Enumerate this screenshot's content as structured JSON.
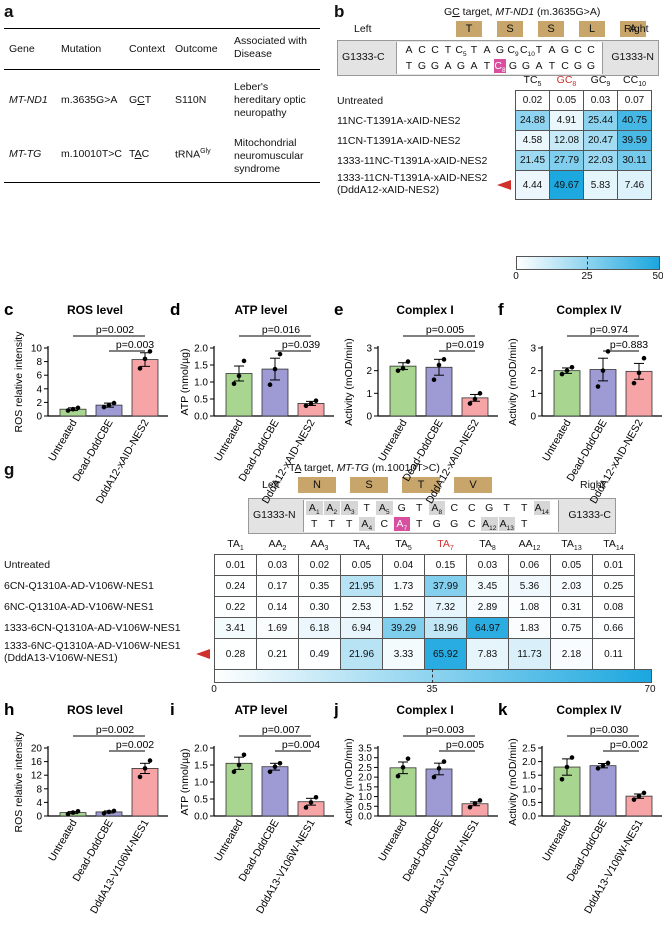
{
  "panel_letters": {
    "a": "a",
    "b": "b",
    "c": "c",
    "d": "d",
    "e": "e",
    "f": "f",
    "g": "g",
    "h": "h",
    "i": "i",
    "j": "j",
    "k": "k"
  },
  "table_a": {
    "headers": [
      "Gene",
      "Mutation",
      "Context",
      "Outcome",
      "Associated with Disease"
    ],
    "rows": [
      {
        "gene": "MT-ND1",
        "mutation": "m.3635G>A",
        "context": "GCT",
        "context_underline_index": 1,
        "outcome": "S110N",
        "disease": [
          "Leber's",
          "hereditary optic",
          "neuropathy"
        ]
      },
      {
        "gene": "MT-TG",
        "mutation": "m.10010T>C",
        "context": "TAC",
        "context_underline_index": 1,
        "outcome": "tRNA",
        "outcome_sup": "Gly",
        "disease": [
          "Mitochondrial",
          "neuromuscular",
          "syndrome"
        ]
      }
    ]
  },
  "panel_b": {
    "title_pre": "G",
    "title_ul": "C",
    "title_post": " target, ",
    "title_gene": "MT-ND1",
    "title_mut": " (m.3635G>A)",
    "left": "Left",
    "right": "Right",
    "left_box": "G1333-C",
    "right_box": "G1333-N",
    "aa": [
      "T",
      "S",
      "S",
      "L",
      "A"
    ],
    "top_seq": [
      {
        "b": "A",
        "s": ""
      },
      {
        "b": "C",
        "s": ""
      },
      {
        "b": "C",
        "s": ""
      },
      {
        "b": "T",
        "s": ""
      },
      {
        "b": "C",
        "s": "5"
      },
      {
        "b": "T",
        "s": ""
      },
      {
        "b": "A",
        "s": ""
      },
      {
        "b": "G",
        "s": ""
      },
      {
        "b": "C",
        "s": "9"
      },
      {
        "b": "C",
        "s": "10"
      },
      {
        "b": "T",
        "s": ""
      },
      {
        "b": "A",
        "s": ""
      },
      {
        "b": "G",
        "s": ""
      },
      {
        "b": "C",
        "s": ""
      },
      {
        "b": "C",
        "s": ""
      }
    ],
    "bottom_seq": [
      {
        "b": "T",
        "s": ""
      },
      {
        "b": "G",
        "s": ""
      },
      {
        "b": "G",
        "s": ""
      },
      {
        "b": "A",
        "s": ""
      },
      {
        "b": "G",
        "s": ""
      },
      {
        "b": "A",
        "s": ""
      },
      {
        "b": "T",
        "s": ""
      },
      {
        "b": "C",
        "s": "8",
        "hl": true
      },
      {
        "b": "G",
        "s": ""
      },
      {
        "b": "G",
        "s": ""
      },
      {
        "b": "A",
        "s": ""
      },
      {
        "b": "T",
        "s": ""
      },
      {
        "b": "C",
        "s": ""
      },
      {
        "b": "G",
        "s": ""
      },
      {
        "b": "G",
        "s": ""
      }
    ],
    "col_headers": [
      {
        "t": "TC",
        "s": "5"
      },
      {
        "t": "GC",
        "s": "8",
        "red": true
      },
      {
        "t": "GC",
        "s": "9"
      },
      {
        "t": "CC",
        "s": "10"
      }
    ],
    "rows": [
      {
        "label": "Untreated",
        "values": [
          0.02,
          0.05,
          0.03,
          0.07
        ]
      },
      {
        "label": "11NC-T1391A-xAID-NES2",
        "values": [
          24.88,
          4.91,
          25.44,
          40.75
        ]
      },
      {
        "label": "11CN-T1391A-xAID-NES2",
        "values": [
          4.58,
          12.08,
          20.47,
          39.59
        ]
      },
      {
        "label": "1333-11NC-T1391A-xAID-NES2",
        "values": [
          21.45,
          27.79,
          22.03,
          30.11
        ]
      },
      {
        "label": "1333-11CN-T1391A-xAID-NES2",
        "label2": "(DddA12-xAID-NES2)",
        "values": [
          4.44,
          49.67,
          5.83,
          7.46
        ],
        "arrow": true
      }
    ],
    "scale": [
      "0",
      "25",
      "50"
    ]
  },
  "panel_g": {
    "title_pre": "T",
    "title_ul": "A",
    "title_post": " target, ",
    "title_gene": "MT-TG",
    "title_mut": " (m.10010T>C)",
    "left": "Left",
    "right": "Right",
    "left_box": "G1333-N",
    "right_box": "G1333-C",
    "aa": [
      "N",
      "S",
      "T",
      "V"
    ],
    "top_seq": [
      {
        "b": "A",
        "s": "1",
        "g": true
      },
      {
        "b": "A",
        "s": "2",
        "g": true
      },
      {
        "b": "A",
        "s": "3",
        "g": true
      },
      {
        "b": "T",
        "s": ""
      },
      {
        "b": "A",
        "s": "5",
        "g": true
      },
      {
        "b": "G",
        "s": ""
      },
      {
        "b": "T",
        "s": ""
      },
      {
        "b": "A",
        "s": "8",
        "g": true
      },
      {
        "b": "C",
        "s": ""
      },
      {
        "b": "C",
        "s": ""
      },
      {
        "b": "G",
        "s": ""
      },
      {
        "b": "T",
        "s": ""
      },
      {
        "b": "T",
        "s": ""
      },
      {
        "b": "A",
        "s": "14",
        "g": true
      }
    ],
    "bottom_seq": [
      {
        "b": "T",
        "s": ""
      },
      {
        "b": "T",
        "s": ""
      },
      {
        "b": "T",
        "s": ""
      },
      {
        "b": "A",
        "s": "4",
        "g": true
      },
      {
        "b": "C",
        "s": ""
      },
      {
        "b": "A",
        "s": "7",
        "hl": true
      },
      {
        "b": "T",
        "s": ""
      },
      {
        "b": "G",
        "s": ""
      },
      {
        "b": "G",
        "s": ""
      },
      {
        "b": "C",
        "s": ""
      },
      {
        "b": "A",
        "s": "12",
        "g": true
      },
      {
        "b": "A",
        "s": "13",
        "g": true
      },
      {
        "b": "T",
        "s": ""
      }
    ],
    "col_headers": [
      {
        "t": "TA",
        "s": "1"
      },
      {
        "t": "AA",
        "s": "2"
      },
      {
        "t": "AA",
        "s": "3"
      },
      {
        "t": "TA",
        "s": "4"
      },
      {
        "t": "TA",
        "s": "5"
      },
      {
        "t": "TA",
        "s": "7",
        "red": true
      },
      {
        "t": "TA",
        "s": "8"
      },
      {
        "t": "AA",
        "s": "12"
      },
      {
        "t": "TA",
        "s": "13"
      },
      {
        "t": "TA",
        "s": "14"
      }
    ],
    "rows": [
      {
        "label": "Untreated",
        "values": [
          0.01,
          0.03,
          0.02,
          0.05,
          0.04,
          0.15,
          0.03,
          0.06,
          0.05,
          0.01
        ]
      },
      {
        "label": "6CN-Q1310A-AD-V106W-NES1",
        "values": [
          0.24,
          0.17,
          0.35,
          21.95,
          1.73,
          37.99,
          3.45,
          5.36,
          2.03,
          0.25
        ]
      },
      {
        "label": "6NC-Q1310A-AD-V106W-NES1",
        "values": [
          0.22,
          0.14,
          0.3,
          2.53,
          1.52,
          7.32,
          2.89,
          1.08,
          0.31,
          0.08
        ]
      },
      {
        "label": "1333-6CN-Q1310A-AD-V106W-NES1",
        "values": [
          3.41,
          1.69,
          6.18,
          6.94,
          39.29,
          18.96,
          64.97,
          1.83,
          0.75,
          0.66
        ]
      },
      {
        "label": "1333-6NC-Q1310A-AD-V106W-NES1",
        "label2": "(DddA13-V106W-NES1)",
        "values": [
          0.28,
          0.21,
          0.49,
          21.96,
          3.33,
          65.92,
          7.83,
          11.73,
          2.18,
          0.11
        ],
        "arrow": true
      }
    ],
    "scale": [
      "0",
      "35",
      "70"
    ]
  },
  "colors": {
    "untreated": "#a8d58f",
    "dead": "#9d9ad4",
    "active": "#f6a4a6",
    "heat_max": "#1ba7df",
    "aa_box": "#c8a56a",
    "hl": "#d94f9f",
    "red": "#d0312d"
  },
  "chart_data": [
    {
      "id": "c",
      "type": "bar",
      "title": "ROS level",
      "ylabel": "ROS relative intensity",
      "ylim": [
        0,
        10
      ],
      "yticks": [
        0,
        2,
        4,
        6,
        8,
        10
      ],
      "categories": [
        "Untreated",
        "Dead-DddCBE",
        "DddA12-xAID-NES2"
      ],
      "values": [
        1.0,
        1.6,
        8.3
      ],
      "errors": [
        0.2,
        0.3,
        1.0
      ],
      "points": [
        [
          0.8,
          1.0,
          1.2
        ],
        [
          1.3,
          1.6,
          1.9
        ],
        [
          7.0,
          8.4,
          9.5
        ]
      ],
      "pvalues": [
        "p=0.002",
        "p=0.003"
      ]
    },
    {
      "id": "d",
      "type": "bar",
      "title": "ATP level",
      "ylabel": "ATP (nmol/µg)",
      "ylim": [
        0,
        2.0
      ],
      "yticks": [
        "0.0",
        "0.5",
        "1.0",
        "1.5",
        "2.0"
      ],
      "categories": [
        "Untreated",
        "Dead-DddCBE",
        "DddA12-xAID-NES2"
      ],
      "values": [
        1.25,
        1.38,
        0.37
      ],
      "errors": [
        0.22,
        0.32,
        0.06
      ],
      "points": [
        [
          0.95,
          1.18,
          1.62
        ],
        [
          0.92,
          1.38,
          1.82
        ],
        [
          0.3,
          0.36,
          0.45
        ]
      ],
      "pvalues": [
        "p=0.016",
        "p=0.039"
      ]
    },
    {
      "id": "e",
      "type": "bar",
      "title": "Complex I",
      "ylabel": "Activity (mOD/min)",
      "ylim": [
        0,
        3
      ],
      "yticks": [
        0,
        1,
        2,
        3
      ],
      "categories": [
        "Untreated",
        "Dead-DddCBE",
        "DddA12-xAID-NES2"
      ],
      "values": [
        2.2,
        2.15,
        0.8
      ],
      "errors": [
        0.15,
        0.35,
        0.15
      ],
      "points": [
        [
          2.0,
          2.1,
          2.4
        ],
        [
          1.6,
          2.25,
          2.5
        ],
        [
          0.55,
          0.75,
          1.0
        ]
      ],
      "pvalues": [
        "p=0.005",
        "p=0.019"
      ]
    },
    {
      "id": "f",
      "type": "bar",
      "title": "Complex IV",
      "ylabel": "Activity (mOD/min)",
      "ylim": [
        0,
        3
      ],
      "yticks": [
        0,
        1,
        2,
        3
      ],
      "categories": [
        "Untreated",
        "Dead-DddCBE",
        "DddA12-xAID-NES2"
      ],
      "values": [
        2.0,
        2.05,
        1.97
      ],
      "errors": [
        0.12,
        0.5,
        0.35
      ],
      "points": [
        [
          1.85,
          2.0,
          2.15
        ],
        [
          1.3,
          2.0,
          2.85
        ],
        [
          1.45,
          1.9,
          2.55
        ]
      ],
      "pvalues": [
        "p=0.974",
        "p=0.883"
      ]
    },
    {
      "id": "h",
      "type": "bar",
      "title": "ROS level",
      "ylabel": "ROS relative intensity",
      "ylim": [
        0,
        20
      ],
      "yticks": [
        0,
        4,
        8,
        12,
        16,
        20
      ],
      "categories": [
        "Untreated",
        "Dead-DddCBE",
        "DddA13-V106W-NES1"
      ],
      "values": [
        1.0,
        1.2,
        14.0
      ],
      "errors": [
        0.3,
        0.3,
        1.5
      ],
      "points": [
        [
          0.6,
          1.0,
          1.4
        ],
        [
          0.8,
          1.2,
          1.5
        ],
        [
          11.5,
          14.0,
          16.3
        ]
      ],
      "pvalues": [
        "p=0.002",
        "p=0.002"
      ]
    },
    {
      "id": "i",
      "type": "bar",
      "title": "ATP level",
      "ylabel": "ATP (nmol/µg)",
      "ylim": [
        0,
        2.0
      ],
      "yticks": [
        "0.0",
        "0.5",
        "1.0",
        "1.5",
        "2.0"
      ],
      "categories": [
        "Untreated",
        "Dead-DddCBE",
        "DddA13-V106W-NES1"
      ],
      "values": [
        1.55,
        1.45,
        0.42
      ],
      "errors": [
        0.18,
        0.1,
        0.1
      ],
      "points": [
        [
          1.3,
          1.5,
          1.8
        ],
        [
          1.3,
          1.45,
          1.55
        ],
        [
          0.25,
          0.4,
          0.55
        ]
      ],
      "pvalues": [
        "p=0.007",
        "p=0.004"
      ]
    },
    {
      "id": "j",
      "type": "bar",
      "title": "Complex I",
      "ylabel": "Activity (mOD/min)",
      "ylim": [
        0,
        3.5
      ],
      "yticks": [
        "0.0",
        "0.5",
        "1.0",
        "1.5",
        "2.0",
        "2.5",
        "3.0",
        "3.5"
      ],
      "categories": [
        "Untreated",
        "Dead-DddCBE",
        "DddA13-V106W-NES1"
      ],
      "values": [
        2.48,
        2.42,
        0.63
      ],
      "errors": [
        0.3,
        0.3,
        0.1
      ],
      "points": [
        [
          2.05,
          2.5,
          2.95
        ],
        [
          2.0,
          2.45,
          2.8
        ],
        [
          0.45,
          0.65,
          0.8
        ]
      ],
      "pvalues": [
        "p=0.003",
        "p=0.005"
      ]
    },
    {
      "id": "k",
      "type": "bar",
      "title": "Complex IV",
      "ylabel": "Activity (mOD/min)",
      "ylim": [
        0,
        2.5
      ],
      "yticks": [
        "0.0",
        "0.5",
        "1.0",
        "1.5",
        "2.0",
        "2.5"
      ],
      "categories": [
        "Untreated",
        "Dead-DddCBE",
        "DddA13-V106W-NES1"
      ],
      "values": [
        1.8,
        1.85,
        0.73
      ],
      "errors": [
        0.3,
        0.08,
        0.08
      ],
      "points": [
        [
          1.35,
          1.8,
          2.15
        ],
        [
          1.75,
          1.85,
          1.95
        ],
        [
          0.6,
          0.73,
          0.85
        ]
      ],
      "pvalues": [
        "p=0.030",
        "p=0.002"
      ]
    }
  ]
}
